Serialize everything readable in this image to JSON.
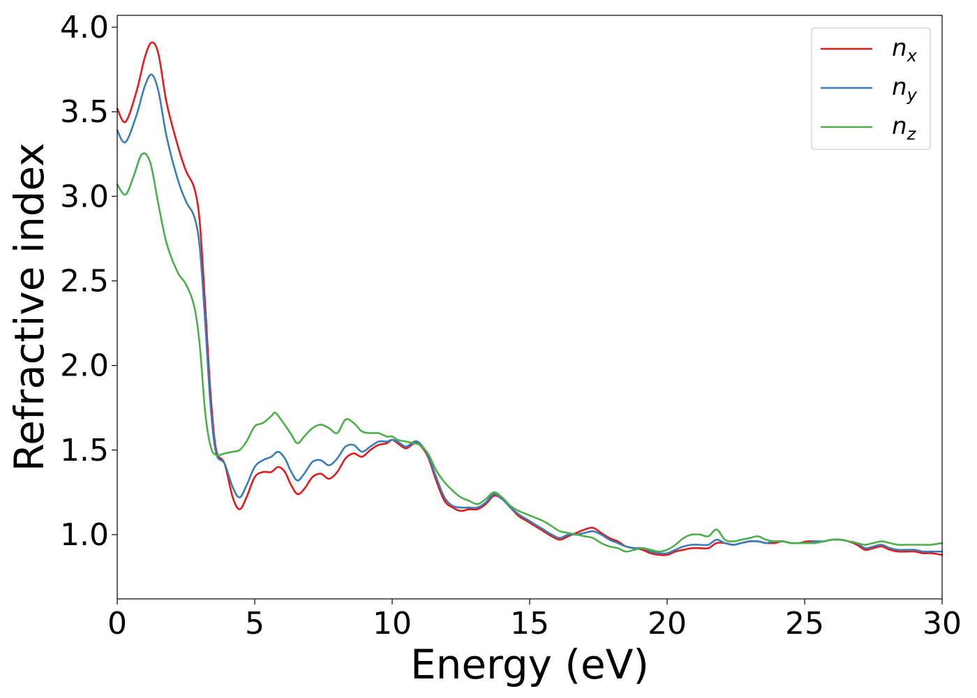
{
  "chart_data": {
    "type": "line",
    "xlabel": "Energy (eV)",
    "ylabel": "Refractive index",
    "xlim": [
      0,
      30
    ],
    "ylim": [
      0.62,
      4.07
    ],
    "xticks": [
      0,
      5,
      10,
      15,
      20,
      25,
      30
    ],
    "xtick_labels": [
      "0",
      "5",
      "10",
      "15",
      "20",
      "25",
      "30"
    ],
    "yticks": [
      1.0,
      1.5,
      2.0,
      2.5,
      3.0,
      3.5,
      4.0
    ],
    "ytick_labels": [
      "1.0",
      "1.5",
      "2.0",
      "2.5",
      "3.0",
      "3.5",
      "4.0"
    ],
    "grid": false,
    "legend_position": "top-right",
    "series": [
      {
        "name": "n_x",
        "label_base": "n",
        "label_sub": "x",
        "color": "#e41a1c",
        "x": [
          0,
          0.3,
          0.7,
          1.0,
          1.25,
          1.5,
          1.8,
          2.2,
          2.5,
          2.8,
          3.0,
          3.2,
          3.4,
          3.6,
          3.9,
          4.2,
          4.45,
          4.7,
          5.0,
          5.3,
          5.6,
          5.85,
          6.1,
          6.3,
          6.55,
          6.8,
          7.1,
          7.4,
          7.7,
          8.0,
          8.3,
          8.6,
          8.9,
          9.2,
          9.5,
          9.8,
          10.0,
          10.2,
          10.5,
          10.8,
          11.0,
          11.3,
          11.6,
          11.9,
          12.2,
          12.5,
          12.8,
          13.1,
          13.4,
          13.7,
          14.0,
          14.3,
          14.6,
          14.9,
          15.2,
          15.5,
          15.8,
          16.1,
          16.4,
          16.7,
          17.0,
          17.3,
          17.6,
          17.9,
          18.2,
          18.5,
          18.8,
          19.1,
          19.4,
          19.7,
          20.0,
          20.3,
          20.6,
          20.9,
          21.2,
          21.5,
          21.8,
          22.1,
          22.4,
          22.7,
          23.0,
          23.3,
          23.6,
          23.9,
          24.2,
          24.5,
          24.8,
          25.1,
          25.4,
          25.7,
          26.0,
          26.3,
          26.6,
          26.9,
          27.2,
          27.5,
          27.8,
          28.1,
          28.4,
          28.7,
          29.0,
          29.3,
          29.6,
          30.0
        ],
        "y": [
          3.52,
          3.44,
          3.62,
          3.82,
          3.91,
          3.84,
          3.55,
          3.3,
          3.15,
          3.05,
          2.85,
          2.35,
          1.82,
          1.5,
          1.42,
          1.22,
          1.15,
          1.22,
          1.34,
          1.37,
          1.37,
          1.4,
          1.37,
          1.3,
          1.24,
          1.27,
          1.34,
          1.36,
          1.33,
          1.37,
          1.45,
          1.48,
          1.46,
          1.5,
          1.53,
          1.54,
          1.56,
          1.54,
          1.51,
          1.54,
          1.53,
          1.46,
          1.32,
          1.2,
          1.16,
          1.14,
          1.15,
          1.15,
          1.18,
          1.23,
          1.21,
          1.16,
          1.11,
          1.08,
          1.05,
          1.02,
          0.99,
          0.97,
          0.99,
          1.01,
          1.03,
          1.04,
          1.01,
          0.98,
          0.96,
          0.93,
          0.92,
          0.91,
          0.89,
          0.88,
          0.88,
          0.9,
          0.91,
          0.92,
          0.92,
          0.92,
          0.95,
          0.95,
          0.94,
          0.95,
          0.96,
          0.96,
          0.95,
          0.95,
          0.96,
          0.95,
          0.95,
          0.96,
          0.96,
          0.96,
          0.97,
          0.97,
          0.96,
          0.94,
          0.91,
          0.92,
          0.93,
          0.91,
          0.9,
          0.9,
          0.9,
          0.89,
          0.89,
          0.88
        ]
      },
      {
        "name": "n_y",
        "label_base": "n",
        "label_sub": "y",
        "color": "#377eb8",
        "x": [
          0,
          0.3,
          0.7,
          1.0,
          1.25,
          1.5,
          1.8,
          2.2,
          2.5,
          2.8,
          3.0,
          3.2,
          3.4,
          3.6,
          3.9,
          4.2,
          4.45,
          4.7,
          5.0,
          5.3,
          5.6,
          5.85,
          6.1,
          6.3,
          6.55,
          6.8,
          7.1,
          7.4,
          7.7,
          8.0,
          8.3,
          8.6,
          8.9,
          9.2,
          9.5,
          9.8,
          10.0,
          10.2,
          10.5,
          10.8,
          11.0,
          11.3,
          11.6,
          11.9,
          12.2,
          12.5,
          12.8,
          13.1,
          13.4,
          13.7,
          14.0,
          14.3,
          14.6,
          14.9,
          15.2,
          15.5,
          15.8,
          16.1,
          16.4,
          16.7,
          17.0,
          17.3,
          17.6,
          17.9,
          18.2,
          18.5,
          18.8,
          19.1,
          19.4,
          19.7,
          20.0,
          20.3,
          20.6,
          20.9,
          21.2,
          21.5,
          21.8,
          22.1,
          22.4,
          22.7,
          23.0,
          23.3,
          23.6,
          23.9,
          24.2,
          24.5,
          24.8,
          25.1,
          25.4,
          25.7,
          26.0,
          26.3,
          26.6,
          26.9,
          27.2,
          27.5,
          27.8,
          28.1,
          28.4,
          28.7,
          29.0,
          29.3,
          29.6,
          30.0
        ],
        "y": [
          3.39,
          3.32,
          3.48,
          3.65,
          3.72,
          3.62,
          3.35,
          3.1,
          2.97,
          2.88,
          2.7,
          2.25,
          1.75,
          1.48,
          1.42,
          1.28,
          1.22,
          1.29,
          1.4,
          1.44,
          1.46,
          1.49,
          1.45,
          1.38,
          1.32,
          1.36,
          1.43,
          1.44,
          1.41,
          1.45,
          1.52,
          1.53,
          1.49,
          1.52,
          1.55,
          1.55,
          1.56,
          1.55,
          1.52,
          1.55,
          1.54,
          1.47,
          1.34,
          1.22,
          1.17,
          1.16,
          1.16,
          1.16,
          1.19,
          1.24,
          1.21,
          1.16,
          1.12,
          1.09,
          1.06,
          1.03,
          1.0,
          0.98,
          1.0,
          1.0,
          1.01,
          1.02,
          1.0,
          0.97,
          0.95,
          0.93,
          0.92,
          0.92,
          0.9,
          0.89,
          0.89,
          0.91,
          0.93,
          0.94,
          0.94,
          0.94,
          0.97,
          0.95,
          0.94,
          0.95,
          0.96,
          0.96,
          0.95,
          0.96,
          0.96,
          0.95,
          0.95,
          0.95,
          0.96,
          0.96,
          0.97,
          0.97,
          0.96,
          0.95,
          0.92,
          0.93,
          0.94,
          0.92,
          0.91,
          0.91,
          0.91,
          0.9,
          0.9,
          0.9
        ]
      },
      {
        "name": "n_z",
        "label_base": "n",
        "label_sub": "z",
        "color": "#4daf4a",
        "x": [
          0,
          0.3,
          0.6,
          0.9,
          1.2,
          1.5,
          1.8,
          2.2,
          2.5,
          2.8,
          3.0,
          3.2,
          3.4,
          3.6,
          3.9,
          4.2,
          4.45,
          4.7,
          5.0,
          5.3,
          5.6,
          5.75,
          6.0,
          6.3,
          6.55,
          6.8,
          7.1,
          7.4,
          7.7,
          8.0,
          8.3,
          8.6,
          8.9,
          9.2,
          9.5,
          9.8,
          10.0,
          10.2,
          10.5,
          10.8,
          11.0,
          11.3,
          11.6,
          11.9,
          12.2,
          12.5,
          12.8,
          13.1,
          13.4,
          13.7,
          14.0,
          14.3,
          14.6,
          14.9,
          15.2,
          15.5,
          15.8,
          16.1,
          16.4,
          16.7,
          17.0,
          17.3,
          17.6,
          17.9,
          18.2,
          18.5,
          18.8,
          19.1,
          19.4,
          19.7,
          20.0,
          20.3,
          20.6,
          20.9,
          21.2,
          21.5,
          21.8,
          22.1,
          22.4,
          22.7,
          23.0,
          23.3,
          23.6,
          23.9,
          24.2,
          24.5,
          24.8,
          25.1,
          25.4,
          25.7,
          26.0,
          26.3,
          26.6,
          26.9,
          27.2,
          27.5,
          27.8,
          28.1,
          28.4,
          28.7,
          29.0,
          29.3,
          29.6,
          30.0
        ],
        "y": [
          3.07,
          3.01,
          3.12,
          3.25,
          3.2,
          2.95,
          2.72,
          2.55,
          2.48,
          2.35,
          2.12,
          1.72,
          1.52,
          1.47,
          1.48,
          1.49,
          1.5,
          1.55,
          1.64,
          1.66,
          1.7,
          1.72,
          1.67,
          1.6,
          1.54,
          1.58,
          1.63,
          1.65,
          1.63,
          1.6,
          1.68,
          1.66,
          1.61,
          1.6,
          1.6,
          1.58,
          1.58,
          1.56,
          1.55,
          1.54,
          1.53,
          1.48,
          1.38,
          1.31,
          1.26,
          1.22,
          1.2,
          1.18,
          1.21,
          1.25,
          1.22,
          1.17,
          1.14,
          1.12,
          1.1,
          1.08,
          1.05,
          1.02,
          1.01,
          1.0,
          0.99,
          0.98,
          0.95,
          0.93,
          0.92,
          0.9,
          0.91,
          0.92,
          0.91,
          0.9,
          0.91,
          0.94,
          0.98,
          1.0,
          1.0,
          0.99,
          1.03,
          0.97,
          0.96,
          0.97,
          0.98,
          0.99,
          0.97,
          0.96,
          0.96,
          0.95,
          0.95,
          0.95,
          0.95,
          0.96,
          0.97,
          0.97,
          0.96,
          0.95,
          0.94,
          0.95,
          0.96,
          0.95,
          0.94,
          0.94,
          0.94,
          0.94,
          0.94,
          0.95
        ]
      }
    ]
  }
}
